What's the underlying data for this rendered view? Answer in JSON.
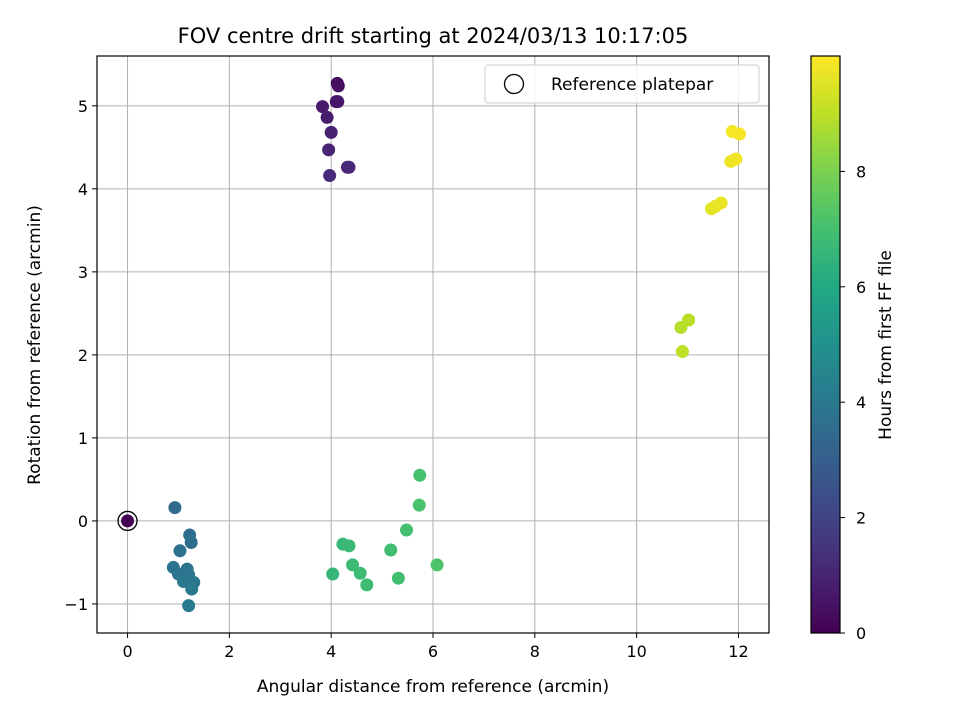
{
  "chart_data": {
    "type": "scatter",
    "title": "FOV centre drift starting at 2024/03/13 10:17:05",
    "xlabel": "Angular distance from reference (arcmin)",
    "ylabel": "Rotation from reference (arcmin)",
    "xlim": [
      -0.6,
      12.6
    ],
    "ylim": [
      -1.35,
      5.6
    ],
    "xticks": [
      0,
      2,
      4,
      6,
      8,
      10,
      12
    ],
    "yticks": [
      -1,
      0,
      1,
      2,
      3,
      4,
      5
    ],
    "grid": true,
    "legend": {
      "position": "top-right",
      "entries": [
        "Reference platepar"
      ]
    },
    "reference_point": {
      "x": 0,
      "y": 0,
      "label": "Reference platepar"
    },
    "colorbar": {
      "label": "Hours from first FF file",
      "range": [
        0,
        10
      ],
      "ticks": [
        0,
        2,
        4,
        6,
        8
      ],
      "colormap": "viridis"
    },
    "points": [
      {
        "x": 0,
        "y": 0,
        "t": 0
      },
      {
        "x": 4.12,
        "y": 5.27,
        "t": 0.3
      },
      {
        "x": 4.14,
        "y": 5.24,
        "t": 0.4
      },
      {
        "x": 4.1,
        "y": 5.05,
        "t": 0.5
      },
      {
        "x": 4.13,
        "y": 5.05,
        "t": 0.6
      },
      {
        "x": 3.83,
        "y": 4.99,
        "t": 0.7
      },
      {
        "x": 3.92,
        "y": 4.86,
        "t": 0.8
      },
      {
        "x": 4.0,
        "y": 4.68,
        "t": 0.9
      },
      {
        "x": 3.95,
        "y": 4.47,
        "t": 1.0
      },
      {
        "x": 4.32,
        "y": 4.26,
        "t": 1.1
      },
      {
        "x": 4.35,
        "y": 4.26,
        "t": 1.15
      },
      {
        "x": 3.97,
        "y": 4.16,
        "t": 1.2
      },
      {
        "x": 0.93,
        "y": 0.16,
        "t": 3.5
      },
      {
        "x": 1.22,
        "y": -0.17,
        "t": 3.6
      },
      {
        "x": 1.25,
        "y": -0.26,
        "t": 3.65
      },
      {
        "x": 1.03,
        "y": -0.36,
        "t": 3.7
      },
      {
        "x": 0.9,
        "y": -0.56,
        "t": 3.75
      },
      {
        "x": 1.0,
        "y": -0.64,
        "t": 3.8
      },
      {
        "x": 1.17,
        "y": -0.58,
        "t": 3.85
      },
      {
        "x": 1.2,
        "y": -0.65,
        "t": 3.9
      },
      {
        "x": 1.1,
        "y": -0.73,
        "t": 3.95
      },
      {
        "x": 1.3,
        "y": -0.74,
        "t": 4.0
      },
      {
        "x": 1.26,
        "y": -0.82,
        "t": 4.05
      },
      {
        "x": 1.2,
        "y": -1.02,
        "t": 4.1
      },
      {
        "x": 4.03,
        "y": -0.64,
        "t": 6.6
      },
      {
        "x": 4.23,
        "y": -0.28,
        "t": 6.65
      },
      {
        "x": 4.35,
        "y": -0.3,
        "t": 6.7
      },
      {
        "x": 4.42,
        "y": -0.53,
        "t": 6.75
      },
      {
        "x": 4.57,
        "y": -0.63,
        "t": 6.8
      },
      {
        "x": 4.7,
        "y": -0.77,
        "t": 6.85
      },
      {
        "x": 5.17,
        "y": -0.35,
        "t": 6.9
      },
      {
        "x": 5.32,
        "y": -0.69,
        "t": 6.95
      },
      {
        "x": 5.48,
        "y": -0.11,
        "t": 7.0
      },
      {
        "x": 5.74,
        "y": 0.55,
        "t": 7.05
      },
      {
        "x": 5.73,
        "y": 0.19,
        "t": 7.1
      },
      {
        "x": 6.08,
        "y": -0.53,
        "t": 7.15
      },
      {
        "x": 10.87,
        "y": 2.33,
        "t": 8.9
      },
      {
        "x": 11.02,
        "y": 2.42,
        "t": 8.95
      },
      {
        "x": 10.9,
        "y": 2.04,
        "t": 9.0
      },
      {
        "x": 11.47,
        "y": 3.76,
        "t": 9.6
      },
      {
        "x": 11.55,
        "y": 3.79,
        "t": 9.65
      },
      {
        "x": 11.66,
        "y": 3.83,
        "t": 9.7
      },
      {
        "x": 11.85,
        "y": 4.33,
        "t": 9.75
      },
      {
        "x": 11.95,
        "y": 4.36,
        "t": 9.8
      },
      {
        "x": 11.88,
        "y": 4.69,
        "t": 9.85
      },
      {
        "x": 12.02,
        "y": 4.66,
        "t": 9.9
      }
    ]
  }
}
